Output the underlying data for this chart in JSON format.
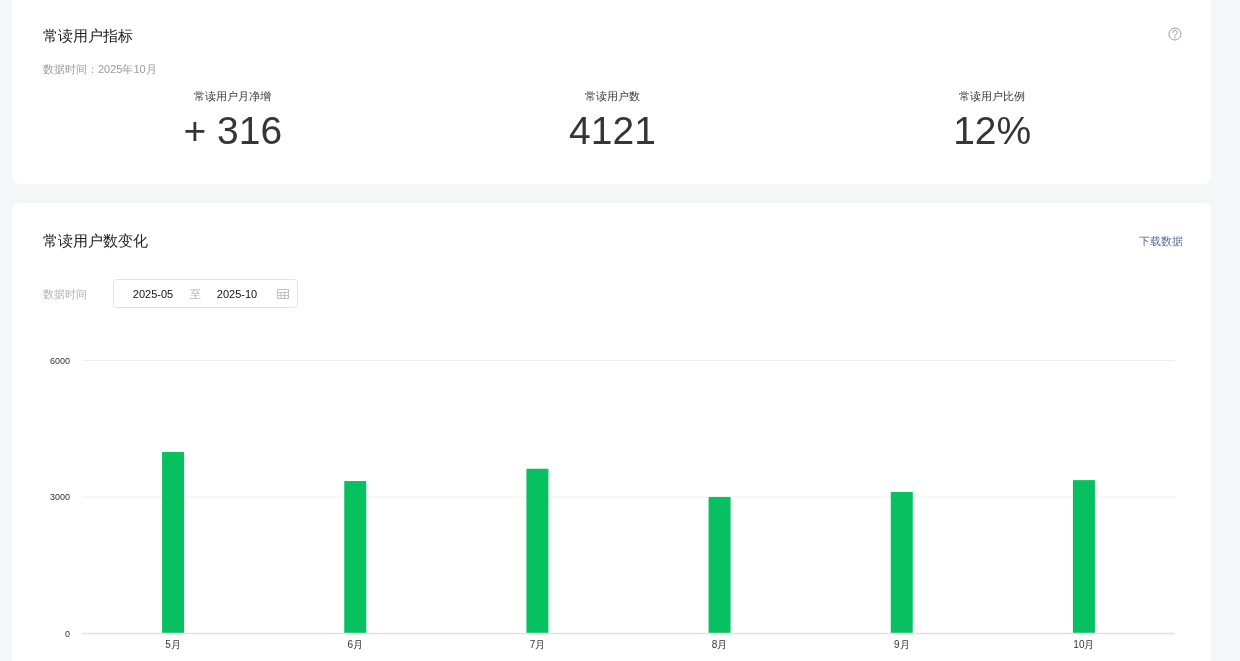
{
  "chart_data": [
    {
      "type": "other",
      "title": "常读用户指标",
      "subtitle": "数据时间：2025年10月",
      "annotations": [
        "常读用户月净增",
        "+ 316",
        "常读用户数",
        "4121",
        "常读用户比例",
        "12%"
      ]
    },
    {
      "type": "bar",
      "title": "常读用户数变化",
      "annotations": [
        "下载数据",
        "数据时间",
        "2025-05",
        "至",
        "2025-10"
      ],
      "categories": [
        "5月",
        "6月",
        "7月",
        "8月",
        "9月",
        "10月"
      ],
      "values": [
        3980,
        3340,
        3610,
        2990,
        3100,
        3360
      ],
      "color": "#07c160",
      "ylim": [
        0,
        6000
      ],
      "yticks": [
        0,
        3000,
        6000
      ],
      "grid": "y"
    }
  ]
}
